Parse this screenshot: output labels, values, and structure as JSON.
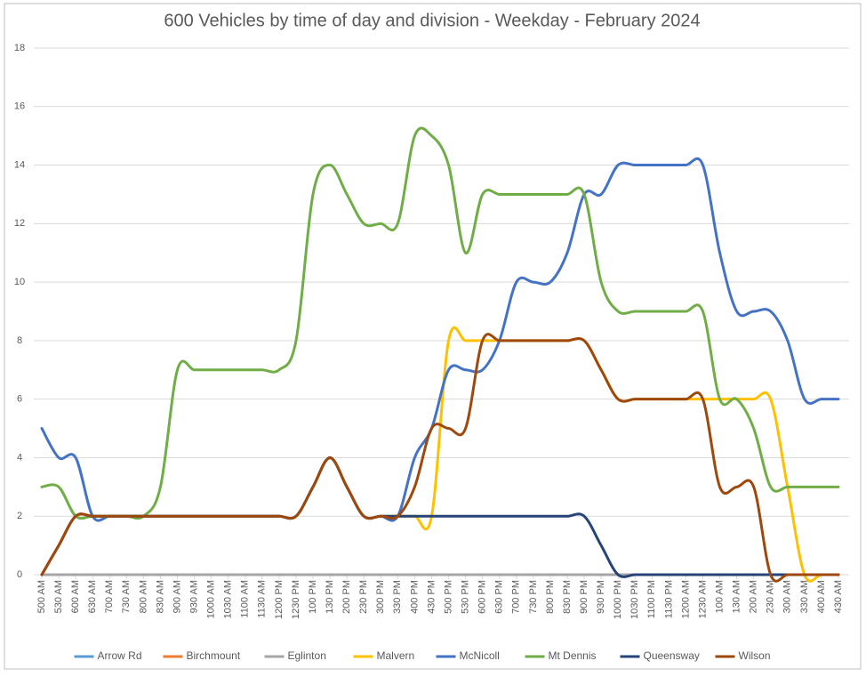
{
  "chart_data": {
    "type": "line",
    "title": "600 Vehicles by time of day and division - Weekday - February 2024",
    "categories": [
      "500 AM",
      "530 AM",
      "600 AM",
      "630 AM",
      "700 AM",
      "730 AM",
      "800 AM",
      "830 AM",
      "900 AM",
      "930 AM",
      "1000 AM",
      "1030 AM",
      "1100 AM",
      "1130 AM",
      "1200 PM",
      "1230 PM",
      "100 PM",
      "130 PM",
      "200 PM",
      "230 PM",
      "300 PM",
      "330 PM",
      "400 PM",
      "430 PM",
      "500 PM",
      "530 PM",
      "600 PM",
      "630 PM",
      "700 PM",
      "730 PM",
      "800 PM",
      "830 PM",
      "900 PM",
      "930 PM",
      "1000 PM",
      "1030 PM",
      "1100 PM",
      "1130 PM",
      "1200 AM",
      "1230 AM",
      "100 AM",
      "130 AM",
      "200 AM",
      "230 AM",
      "300 AM",
      "330 AM",
      "400 AM",
      "430 AM"
    ],
    "ylim": [
      0,
      18
    ],
    "yticks": [
      0,
      2,
      4,
      6,
      8,
      10,
      12,
      14,
      16,
      18
    ],
    "grid": true,
    "legend": "bottom",
    "series": [
      {
        "name": "Arrow Rd",
        "color": "#5b9bd5",
        "values": [
          0,
          0,
          0,
          0,
          0,
          0,
          0,
          0,
          0,
          0,
          0,
          0,
          0,
          0,
          0,
          0,
          0,
          0,
          0,
          0,
          0,
          0,
          0,
          0,
          0,
          0,
          0,
          0,
          0,
          0,
          0,
          0,
          0,
          0,
          0,
          0,
          0,
          0,
          0,
          0,
          0,
          0,
          0,
          0,
          0,
          0,
          0,
          0
        ]
      },
      {
        "name": "Birchmount",
        "color": "#ed7d31",
        "values": [
          0,
          0,
          0,
          0,
          0,
          0,
          0,
          0,
          0,
          0,
          0,
          0,
          0,
          0,
          0,
          0,
          0,
          0,
          0,
          0,
          0,
          0,
          0,
          0,
          0,
          0,
          0,
          0,
          0,
          0,
          0,
          0,
          0,
          0,
          0,
          0,
          0,
          0,
          0,
          0,
          0,
          0,
          0,
          0,
          0,
          0,
          0,
          0
        ]
      },
      {
        "name": "Eglinton",
        "color": "#a5a5a5",
        "values": [
          0,
          0,
          0,
          0,
          0,
          0,
          0,
          0,
          0,
          0,
          0,
          0,
          0,
          0,
          0,
          0,
          0,
          0,
          0,
          0,
          0,
          0,
          0,
          0,
          0,
          0,
          0,
          0,
          0,
          0,
          0,
          0,
          0,
          0,
          0,
          0,
          0,
          0,
          0,
          0,
          0,
          0,
          0,
          0,
          0,
          0,
          0,
          0
        ]
      },
      {
        "name": "Malvern",
        "color": "#ffc000",
        "values": [
          0,
          1,
          2,
          2,
          2,
          2,
          2,
          2,
          2,
          2,
          2,
          2,
          2,
          2,
          2,
          2,
          3,
          4,
          3,
          2,
          2,
          2,
          2,
          2,
          8,
          8,
          8,
          8,
          8,
          8,
          8,
          8,
          8,
          7,
          6,
          6,
          6,
          6,
          6,
          6,
          6,
          6,
          6,
          6,
          3,
          0,
          0,
          0
        ]
      },
      {
        "name": "McNicoll",
        "color": "#4472c4",
        "values": [
          5,
          4,
          4,
          2,
          2,
          2,
          2,
          2,
          2,
          2,
          2,
          2,
          2,
          2,
          2,
          2,
          3,
          4,
          3,
          2,
          2,
          2,
          4,
          5,
          7,
          7,
          7,
          8,
          10,
          10,
          10,
          11,
          13,
          13,
          14,
          14,
          14,
          14,
          14,
          14,
          11,
          9,
          9,
          9,
          8,
          6,
          6,
          6
        ]
      },
      {
        "name": "Mt Dennis",
        "color": "#70ad47",
        "values": [
          3,
          3,
          2,
          2,
          2,
          2,
          2,
          3,
          7,
          7,
          7,
          7,
          7,
          7,
          7,
          8,
          13,
          14,
          13,
          12,
          12,
          12,
          15,
          15,
          14,
          11,
          13,
          13,
          13,
          13,
          13,
          13,
          13,
          10,
          9,
          9,
          9,
          9,
          9,
          9,
          6,
          6,
          5,
          3,
          3,
          3,
          3,
          3
        ]
      },
      {
        "name": "Queensway",
        "color": "#264478",
        "values": [
          0,
          1,
          2,
          2,
          2,
          2,
          2,
          2,
          2,
          2,
          2,
          2,
          2,
          2,
          2,
          2,
          3,
          4,
          3,
          2,
          2,
          2,
          2,
          2,
          2,
          2,
          2,
          2,
          2,
          2,
          2,
          2,
          2,
          1,
          0,
          0,
          0,
          0,
          0,
          0,
          0,
          0,
          0,
          0,
          0,
          0,
          0,
          0
        ]
      },
      {
        "name": "Wilson",
        "color": "#9e480e",
        "values": [
          0,
          1,
          2,
          2,
          2,
          2,
          2,
          2,
          2,
          2,
          2,
          2,
          2,
          2,
          2,
          2,
          3,
          4,
          3,
          2,
          2,
          2,
          3,
          5,
          5,
          5,
          8,
          8,
          8,
          8,
          8,
          8,
          8,
          7,
          6,
          6,
          6,
          6,
          6,
          6,
          3,
          3,
          3,
          0,
          0,
          0,
          0,
          0
        ]
      }
    ]
  }
}
